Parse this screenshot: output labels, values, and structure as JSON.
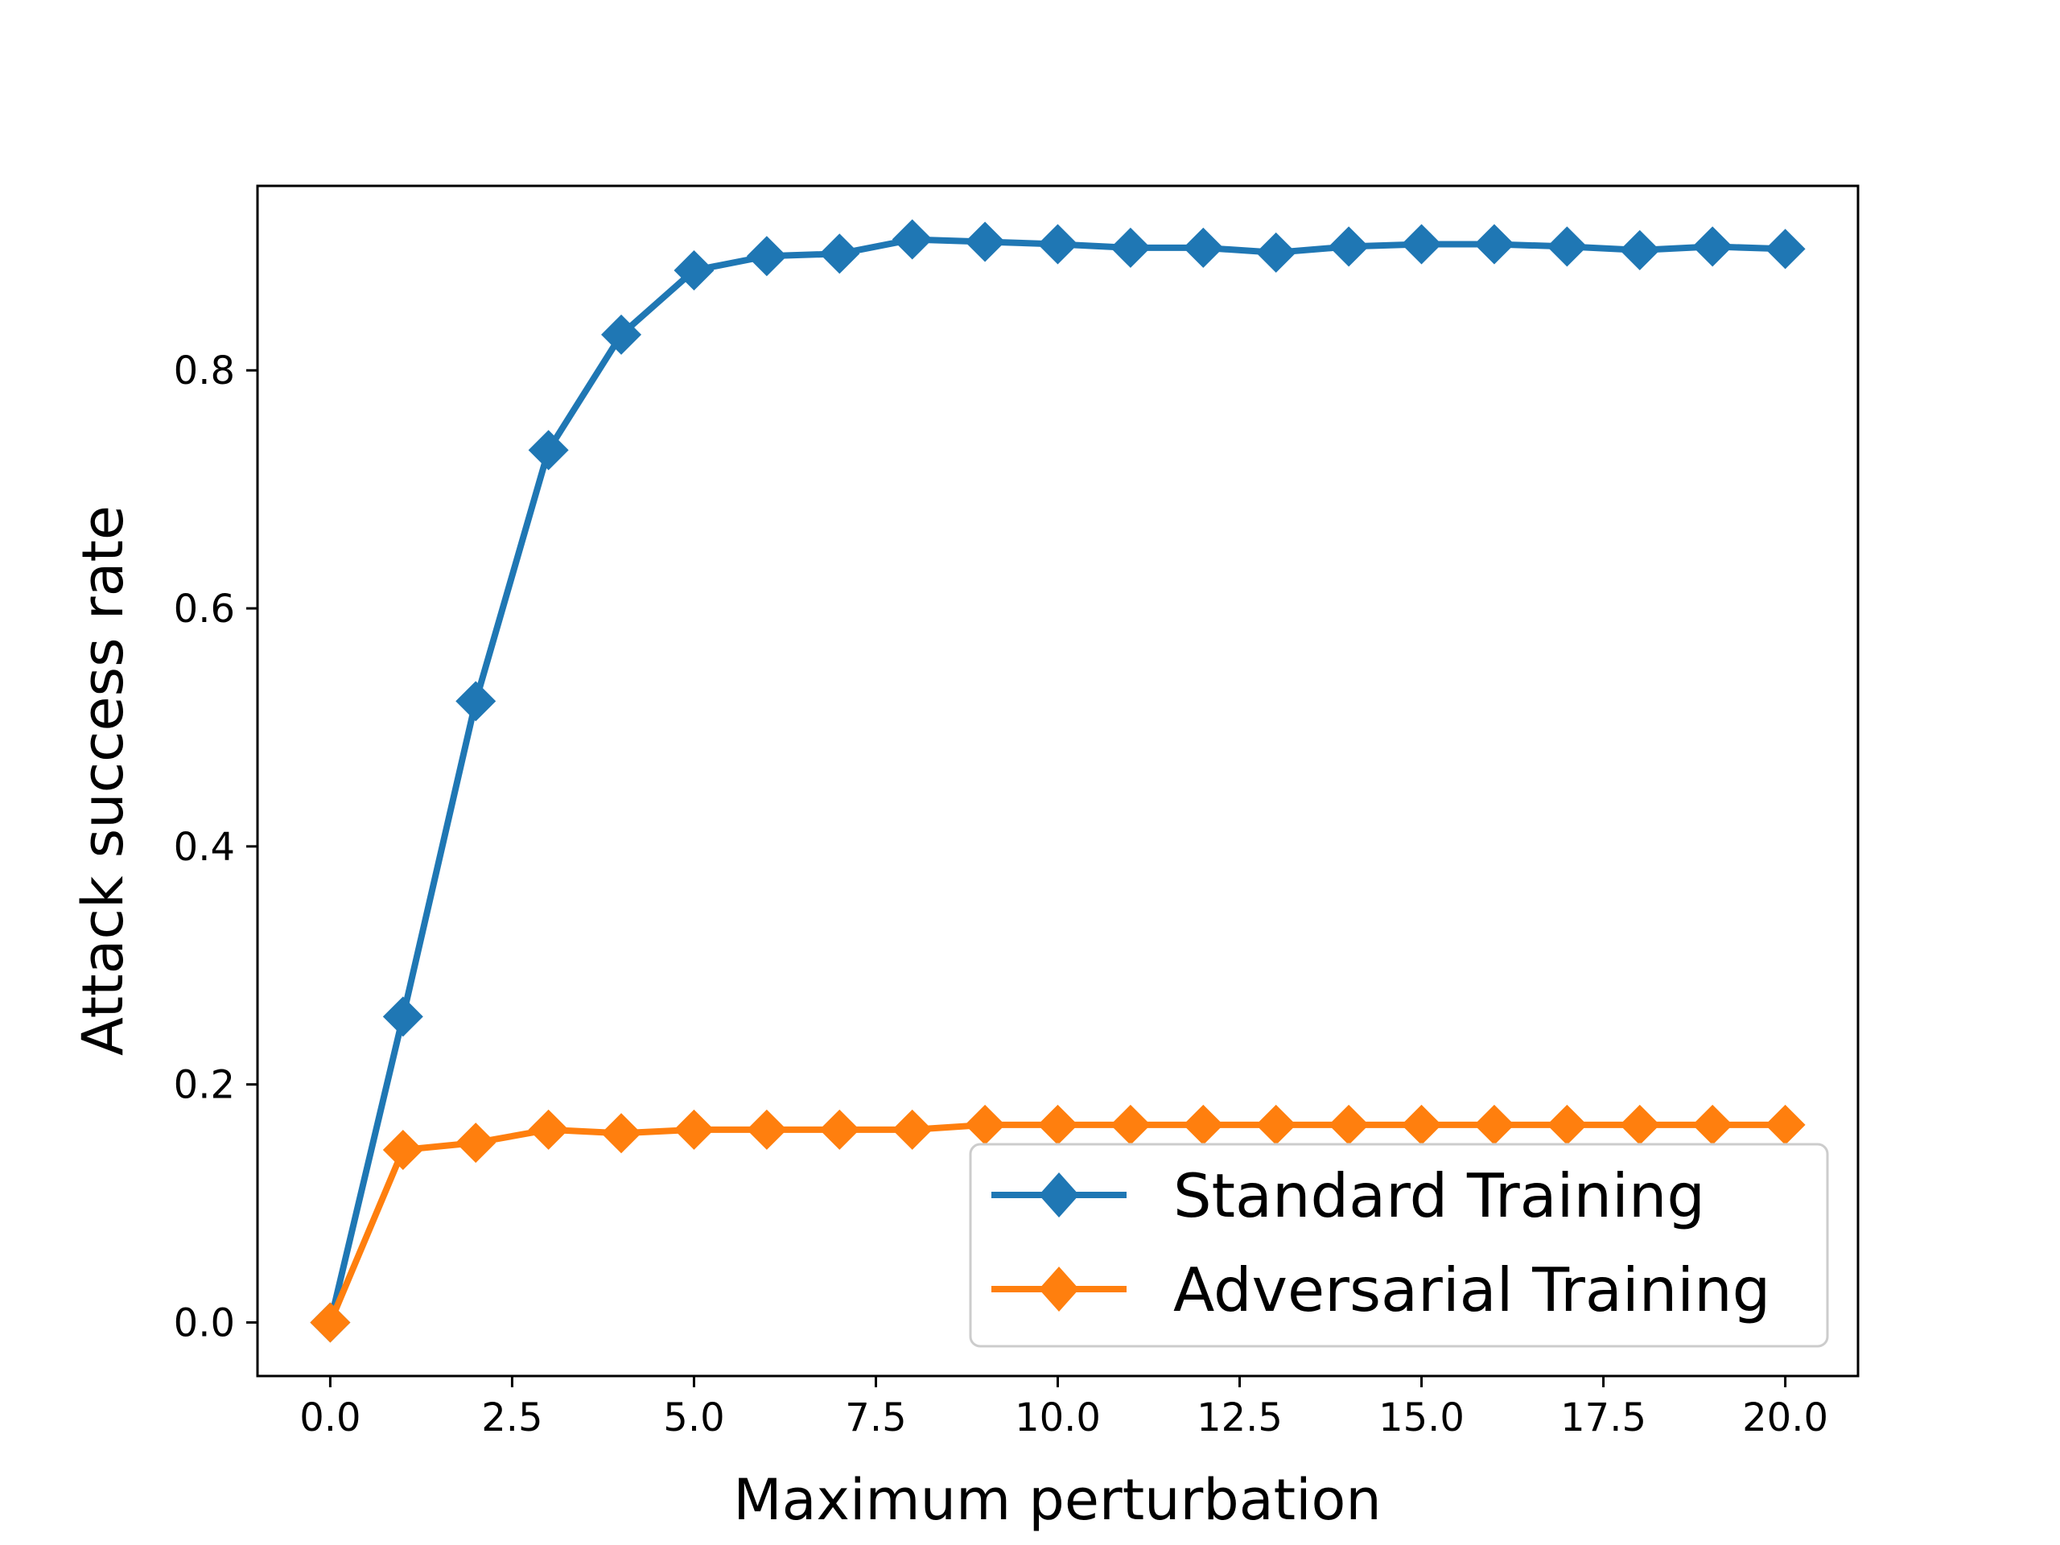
{
  "chart_data": {
    "type": "line",
    "title": "",
    "xlabel": "Maximum perturbation",
    "ylabel": "Attack success rate",
    "xlim": [
      -1.0,
      21.0
    ],
    "ylim": [
      -0.045,
      0.955
    ],
    "x_ticks": [
      0.0,
      2.5,
      5.0,
      7.5,
      10.0,
      12.5,
      15.0,
      17.5,
      20.0
    ],
    "x_tick_labels": [
      "0.0",
      "2.5",
      "5.0",
      "7.5",
      "10.0",
      "12.5",
      "15.0",
      "17.5",
      "20.0"
    ],
    "y_ticks": [
      0.0,
      0.2,
      0.4,
      0.6,
      0.8
    ],
    "y_tick_labels": [
      "0.0",
      "0.2",
      "0.4",
      "0.6",
      "0.8"
    ],
    "grid": false,
    "legend_position": "lower-right",
    "x": [
      0,
      1,
      2,
      3,
      4,
      5,
      6,
      7,
      8,
      9,
      10,
      11,
      12,
      13,
      14,
      15,
      16,
      17,
      18,
      19,
      20
    ],
    "series": [
      {
        "name": "Standard Training",
        "color": "#1f77b4",
        "marker": "diamond",
        "values": [
          0.0,
          0.257,
          0.522,
          0.733,
          0.83,
          0.884,
          0.896,
          0.898,
          0.91,
          0.908,
          0.906,
          0.903,
          0.903,
          0.899,
          0.904,
          0.906,
          0.906,
          0.904,
          0.901,
          0.904,
          0.902
        ]
      },
      {
        "name": "Adversarial Training",
        "color": "#ff7f0e",
        "marker": "diamond",
        "values": [
          0.0,
          0.145,
          0.151,
          0.162,
          0.159,
          0.162,
          0.162,
          0.162,
          0.162,
          0.166,
          0.166,
          0.166,
          0.166,
          0.166,
          0.166,
          0.166,
          0.166,
          0.166,
          0.166,
          0.166,
          0.166
        ]
      }
    ]
  }
}
